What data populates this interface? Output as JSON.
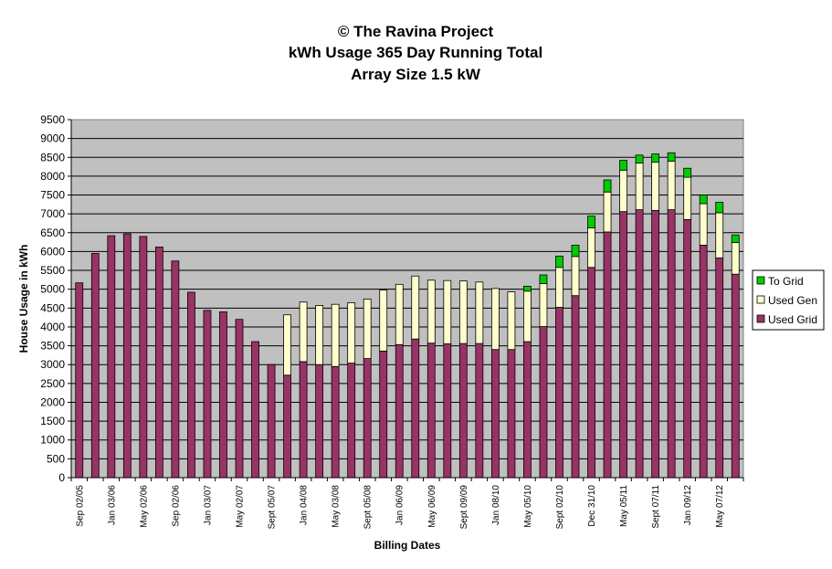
{
  "chart_data": {
    "type": "bar",
    "stacked": true,
    "title_lines": [
      "© The Ravina Project",
      "kWh Usage 365 Day Running Total",
      "Array Size 1.5 kW"
    ],
    "xlabel": "Billing Dates",
    "ylabel": "House Usage in kWh",
    "ylim": [
      0,
      9500
    ],
    "yticks": [
      0,
      500,
      1000,
      1500,
      2000,
      2500,
      3000,
      3500,
      4000,
      4500,
      5000,
      5500,
      6000,
      6500,
      7000,
      7500,
      8000,
      8500,
      9000,
      9500
    ],
    "grid": true,
    "legend_position": "right",
    "categories": [
      "Sep 02/05",
      "",
      "Jan 03/06",
      "",
      "May 02/06",
      "",
      "Sep 02/06",
      "",
      "Jan 03/07",
      "",
      "May 02/07",
      "",
      "Sept 05/07",
      "",
      "Jan 04/08",
      "",
      "May 03/08",
      "",
      "Sept 05/08",
      "",
      "Jan 06/09",
      "",
      "May 06/09",
      "",
      "Sept 09/09",
      "",
      "Jan 08/10",
      "",
      "May 05/10",
      "",
      "Sept 02/10",
      "",
      "Dec 31/10",
      "",
      "May 05/11",
      "",
      "Sept 07/11",
      "",
      "Jan 09/12",
      "",
      "May 07/12",
      ""
    ],
    "series": [
      {
        "name": "Used Grid",
        "color": "#993366",
        "values": [
          5170,
          5950,
          6420,
          6470,
          6400,
          6120,
          5750,
          4920,
          4440,
          4400,
          4200,
          3610,
          3000,
          2720,
          3080,
          3000,
          2950,
          3040,
          3160,
          3360,
          3530,
          3680,
          3570,
          3550,
          3560,
          3560,
          3400,
          3400,
          3610,
          4010,
          4520,
          4830,
          5580,
          6520,
          7060,
          7110,
          7090,
          7110,
          6850,
          6170,
          5830,
          5400
        ]
      },
      {
        "name": "Used Gen",
        "color": "#FFFFCC",
        "values": [
          0,
          0,
          0,
          0,
          0,
          0,
          0,
          0,
          0,
          0,
          0,
          0,
          0,
          1600,
          1580,
          1570,
          1650,
          1600,
          1580,
          1620,
          1600,
          1670,
          1670,
          1680,
          1660,
          1630,
          1620,
          1530,
          1340,
          1140,
          1060,
          1040,
          1050,
          1060,
          1100,
          1240,
          1280,
          1290,
          1120,
          1100,
          1200,
          840
        ]
      },
      {
        "name": "To Grid",
        "color": "#00CC00",
        "values": [
          0,
          0,
          0,
          0,
          0,
          0,
          0,
          0,
          0,
          0,
          0,
          0,
          0,
          0,
          0,
          0,
          0,
          0,
          0,
          0,
          0,
          0,
          0,
          0,
          0,
          0,
          0,
          0,
          130,
          230,
          300,
          300,
          310,
          320,
          260,
          210,
          220,
          220,
          240,
          230,
          280,
          200
        ]
      }
    ]
  }
}
